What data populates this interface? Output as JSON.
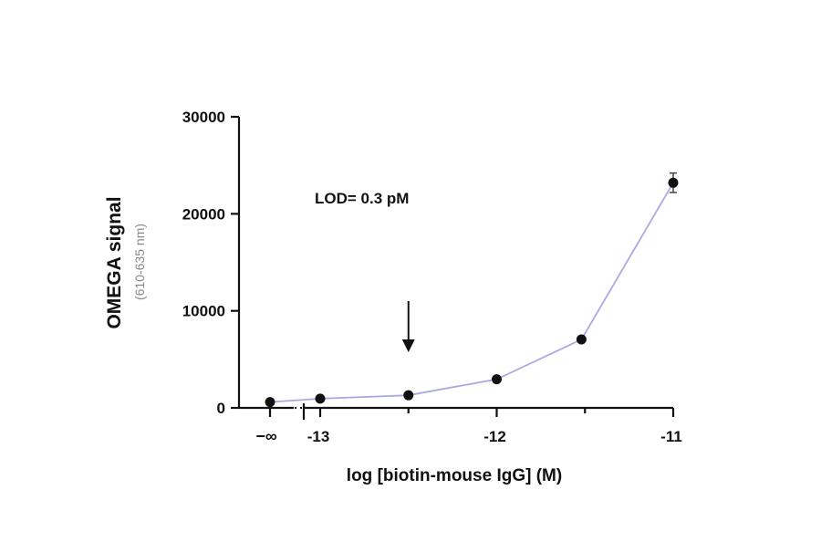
{
  "chart_data": {
    "type": "line",
    "ylabel": "OMEGA signal",
    "ylabel_sub": "(610-635 nm)",
    "xlabel": "log [biotin-mouse IgG] (M)",
    "annotation": "LOD= 0.3 pM",
    "arrow_at_x": -12.5,
    "ylim": [
      0,
      30000
    ],
    "yticks": [
      0,
      10000,
      20000,
      30000
    ],
    "ytick_labels": [
      "0",
      "10000",
      "20000",
      "30000"
    ],
    "xticks": [
      -13,
      -12,
      -11
    ],
    "xtick_labels": [
      "-13",
      "-12",
      "-11"
    ],
    "x_zero_label": "−∞",
    "x_axis_break": true,
    "series": [
      {
        "color": "#a9a9e6",
        "points": [
          {
            "x": "-inf",
            "y": 600
          },
          {
            "x": -13.0,
            "y": 950
          },
          {
            "x": -12.5,
            "y": 1300
          },
          {
            "x": -12.0,
            "y": 2950
          },
          {
            "x": -11.52,
            "y": 7050
          },
          {
            "x": -11.0,
            "y": 23200,
            "err": 1000
          }
        ]
      }
    ]
  }
}
